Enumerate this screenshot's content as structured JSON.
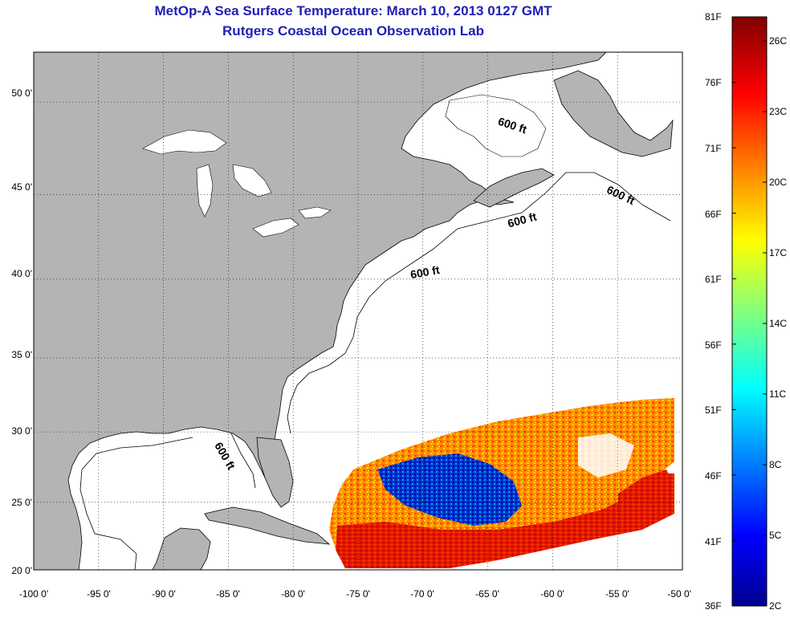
{
  "title": {
    "line1": "MetOp-A Sea Surface Temperature:  March 10, 2013 0127 GMT",
    "line2": "Rutgers Coastal Ocean Observation Lab"
  },
  "map": {
    "lon_range": [
      -100,
      -50
    ],
    "lat_range": [
      20,
      52.5
    ],
    "lon_ticks": [
      "-100 0'",
      "-95 0'",
      "-90 0'",
      "-85 0'",
      "-80 0'",
      "-75 0'",
      "-70 0'",
      "-65 0'",
      "-60 0'",
      "-55 0'",
      "-50 0'"
    ],
    "lat_ticks": [
      "20 0'",
      "25 0'",
      "30 0'",
      "35 0'",
      "40 0'",
      "45 0'",
      "50 0'"
    ],
    "grid": "dotted",
    "land_color": "#b4b4b4",
    "ocean_color": "#ffffff",
    "contour_labels": [
      "600 ft",
      "600 ft",
      "600 ft",
      "600 ft",
      "600 ft"
    ]
  },
  "colorbar": {
    "fahrenheit_labels": [
      "81F",
      "76F",
      "71F",
      "66F",
      "61F",
      "56F",
      "51F",
      "46F",
      "41F",
      "36F"
    ],
    "celsius_labels": [
      "26C",
      "23C",
      "20C",
      "17C",
      "14C",
      "11C",
      "8C",
      "5C",
      "2C"
    ],
    "colormap": "jet",
    "colors": [
      "#00008f",
      "#0000ff",
      "#00ffff",
      "#ffff00",
      "#ff0000",
      "#800000"
    ]
  }
}
